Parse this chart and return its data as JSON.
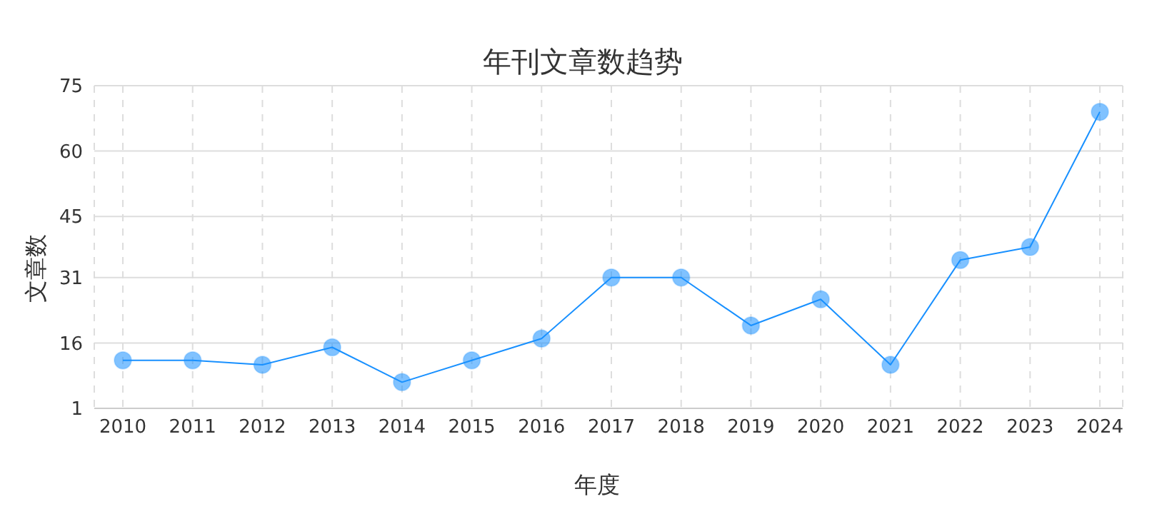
{
  "chart_data": {
    "type": "line",
    "title": "年刊文章数趋势",
    "xlabel": "年度",
    "ylabel": "文章数",
    "categories": [
      "2010",
      "2011",
      "2012",
      "2013",
      "2014",
      "2015",
      "2016",
      "2017",
      "2018",
      "2019",
      "2020",
      "2021",
      "2022",
      "2023",
      "2024"
    ],
    "series": [
      {
        "color": "#1890ff",
        "values": [
          12,
          12,
          11,
          15,
          7,
          12,
          17,
          31,
          31,
          20,
          26,
          11,
          35,
          38,
          69
        ]
      }
    ],
    "ylim": [
      1,
      75
    ],
    "yticks": [
      1,
      16,
      31,
      45,
      60,
      75
    ],
    "grid": true,
    "marker": "circle",
    "line_style": "solid",
    "legend": false
  }
}
